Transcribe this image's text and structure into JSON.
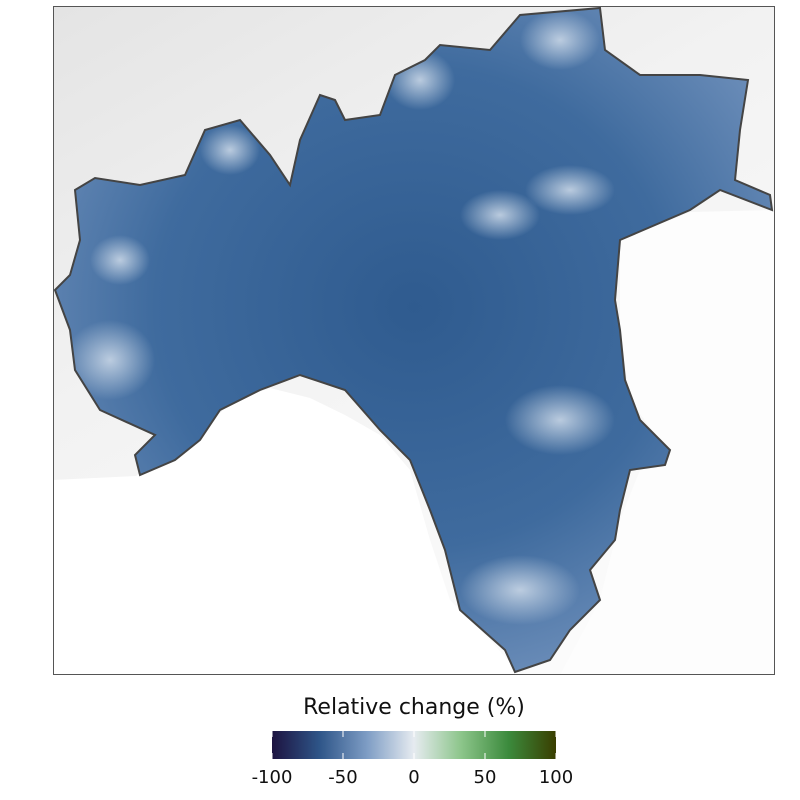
{
  "legend": {
    "title": "Relative change (%)",
    "range": [
      -100,
      100
    ],
    "ticks": [
      -100,
      -50,
      0,
      50,
      100
    ],
    "colors": [
      "#1d1340",
      "#2e5588",
      "#7d9cc4",
      "#e6ebf0",
      "#8cc58a",
      "#3b8a3c",
      "#3a3e00"
    ]
  }
}
